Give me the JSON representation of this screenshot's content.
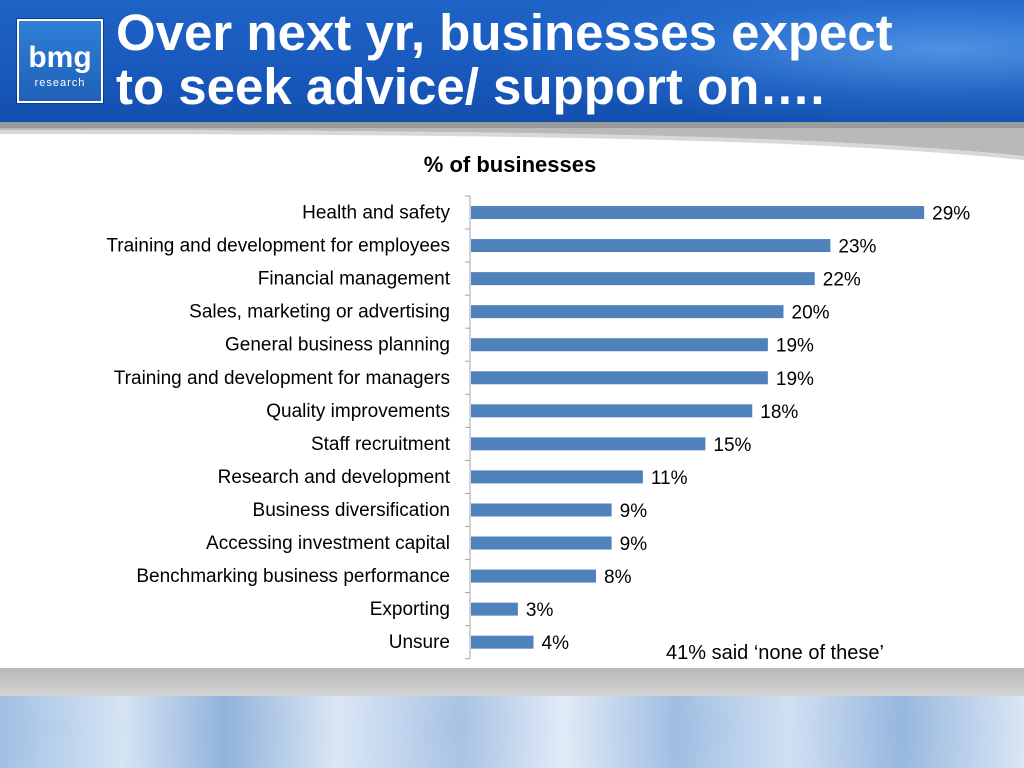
{
  "header": {
    "logo_main": "bmg",
    "logo_sub": "research",
    "title_line1": "Over next yr, businesses expect",
    "title_line2": "to seek advice/ support on…."
  },
  "chart_data": {
    "type": "bar",
    "orientation": "horizontal",
    "title": "% of businesses",
    "categories": [
      "Health and safety",
      "Training and development for employees",
      "Financial management",
      "Sales, marketing or advertising",
      "General business planning",
      "Training and development for managers",
      "Quality improvements",
      "Staff recruitment",
      "Research and development",
      "Business diversification",
      "Accessing investment capital",
      "Benchmarking business performance",
      "Exporting",
      "Unsure"
    ],
    "values": [
      29,
      23,
      22,
      20,
      19,
      19,
      18,
      15,
      11,
      9,
      9,
      8,
      3,
      4
    ],
    "value_suffix": "%",
    "bar_color": "#4f81bd",
    "xlim": [
      0,
      32
    ]
  },
  "note": "41% said ‘none of these’",
  "colors": {
    "header_blue": "#1a5bbf",
    "bar": "#4f81bd"
  }
}
